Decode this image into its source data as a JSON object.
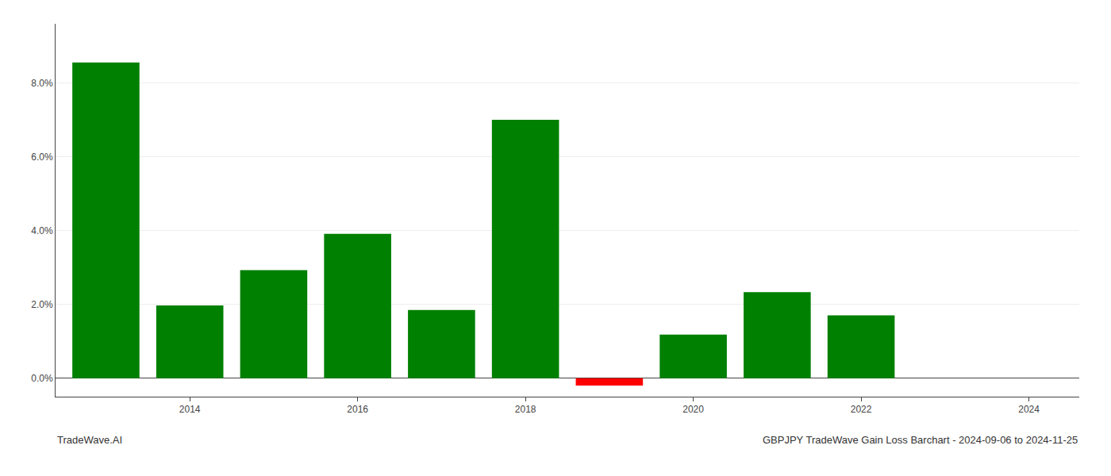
{
  "chart_data": {
    "type": "bar",
    "x": [
      2013,
      2014,
      2015,
      2016,
      2017,
      2018,
      2019,
      2020,
      2021,
      2022
    ],
    "values": [
      0.0855,
      0.0197,
      0.0293,
      0.0391,
      0.0185,
      0.07,
      -0.002,
      0.0118,
      0.0233,
      0.017
    ],
    "colors": [
      "#008000",
      "#008000",
      "#008000",
      "#008000",
      "#008000",
      "#008000",
      "#ff0000",
      "#008000",
      "#008000",
      "#008000"
    ],
    "annotations": [
      "TradeWave.AI",
      "GBPJPY TradeWave Gain Loss Barchart - 2024-09-06 to 2024-11-25"
    ],
    "xlim": [
      2012.4,
      2024.6
    ],
    "xticks": [
      2014,
      2016,
      2018,
      2020,
      2022,
      2024
    ],
    "ylim": [
      -0.005,
      0.096
    ],
    "yticks": [
      {
        "value": 0.0,
        "label": "0.0%"
      },
      {
        "value": 0.02,
        "label": "2.0%"
      },
      {
        "value": 0.04,
        "label": "4.0%"
      },
      {
        "value": 0.06,
        "label": "6.0%"
      },
      {
        "value": 0.08,
        "label": "8.0%"
      }
    ],
    "grid": true
  }
}
